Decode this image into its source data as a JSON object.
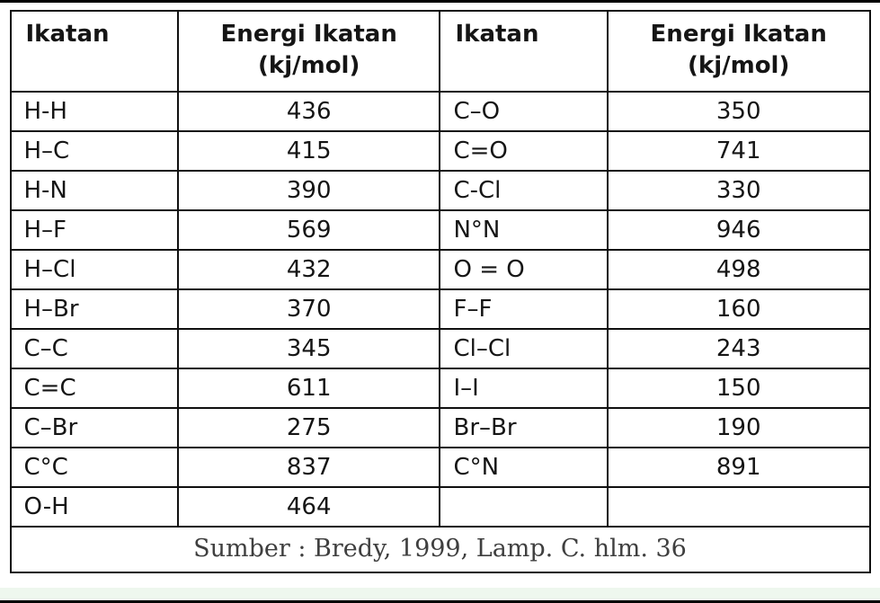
{
  "table": {
    "headers": {
      "col1": "Ikatan",
      "col2_line1": "Energi Ikatan",
      "col2_unit": "(kj/mol)",
      "col3": "Ikatan",
      "col4_line1": "Energi Ikatan",
      "col4_unit": "(kj/mol)"
    },
    "rows": [
      [
        "H-H",
        "436",
        "C–O",
        "350"
      ],
      [
        "H–C",
        "415",
        "C=O",
        "741"
      ],
      [
        "H-N",
        "390",
        "C-Cl",
        "330"
      ],
      [
        "H–F",
        "569",
        "N°N",
        "946"
      ],
      [
        "H–Cl",
        "432",
        "O = O",
        "498"
      ],
      [
        "H–Br",
        "370",
        "F–F",
        "160"
      ],
      [
        "C–C",
        "345",
        "Cl–Cl",
        "243"
      ],
      [
        "C=C",
        "611",
        "I–I",
        "150"
      ],
      [
        "C–Br",
        "275",
        "Br–Br",
        "190"
      ],
      [
        "C°C",
        "837",
        "C°N",
        "891"
      ],
      [
        "O-H",
        "464",
        "",
        ""
      ]
    ],
    "footer": "Sumber : Bredy, 1999, Lamp. C. hlm. 36"
  }
}
